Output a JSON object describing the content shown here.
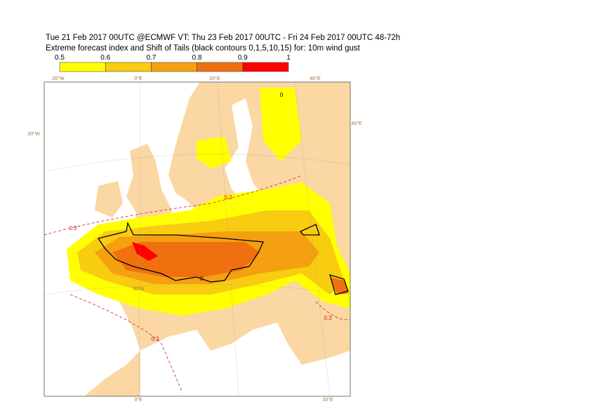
{
  "header": {
    "line1": "Tue 21 Feb 2017 00UTC @ECMWF VT: Thu 23 Feb 2017 00UTC - Fri 24 Feb 2017 00UTC  48-72h",
    "line2": "Extreme forecast index and Shift of Tails (black contours 0,1,5,10,15) for: 10m wind gust"
  },
  "colorbar": {
    "ticks": [
      0.5,
      0.6,
      0.7,
      0.8,
      0.9,
      1
    ],
    "colors": [
      "#ffff00",
      "#f8cc10",
      "#f5a010",
      "#f07010",
      "#ff0000"
    ]
  },
  "map": {
    "geo_labels": [
      "20°W",
      "0°E",
      "20°E",
      "40°E",
      "20°W",
      "40°E",
      "50°N",
      "0°E",
      "20°E"
    ],
    "contour_labels": [
      "0.3",
      "0.3",
      "0.3",
      "0.3"
    ],
    "sot_labels": [
      "0",
      "0"
    ]
  }
}
